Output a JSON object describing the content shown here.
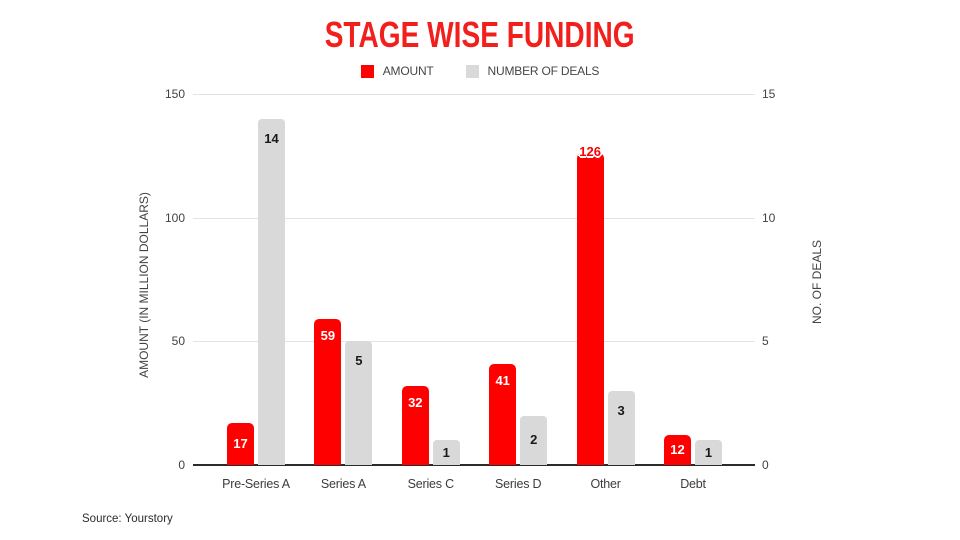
{
  "title": "STAGE WISE FUNDING",
  "source": "Source: Yourstory",
  "legend": [
    {
      "label": "AMOUNT",
      "color": "#ff0000"
    },
    {
      "label": "NUMBER OF DEALS",
      "color": "#d9d9d9"
    }
  ],
  "chart_data": {
    "type": "bar",
    "title": "STAGE WISE FUNDING",
    "categories": [
      "Pre-Series A",
      "Series A",
      "Series C",
      "Series D",
      "Other",
      "Debt"
    ],
    "series": [
      {
        "name": "AMOUNT",
        "axis": "left",
        "color": "#ff0000",
        "values": [
          17,
          59,
          32,
          41,
          126,
          12
        ]
      },
      {
        "name": "NUMBER OF DEALS",
        "axis": "right",
        "color": "#d9d9d9",
        "values": [
          14,
          5,
          1,
          2,
          3,
          1
        ]
      }
    ],
    "left_axis": {
      "title": "AMOUNT (IN MILLION DOLLARS)",
      "min": 0,
      "max": 150,
      "ticks": [
        0,
        50,
        100,
        150
      ]
    },
    "right_axis": {
      "title": "NO. OF DEALS",
      "min": 0,
      "max": 15,
      "ticks": [
        0,
        5,
        10,
        15
      ]
    },
    "grid": true,
    "legend_position": "top",
    "colors": {
      "amount_bar": "#ff0000",
      "deals_bar": "#d9d9d9",
      "title": "#f2201d",
      "gridline": "#e3e3e3",
      "axis_line": "#2b2b2b"
    }
  }
}
